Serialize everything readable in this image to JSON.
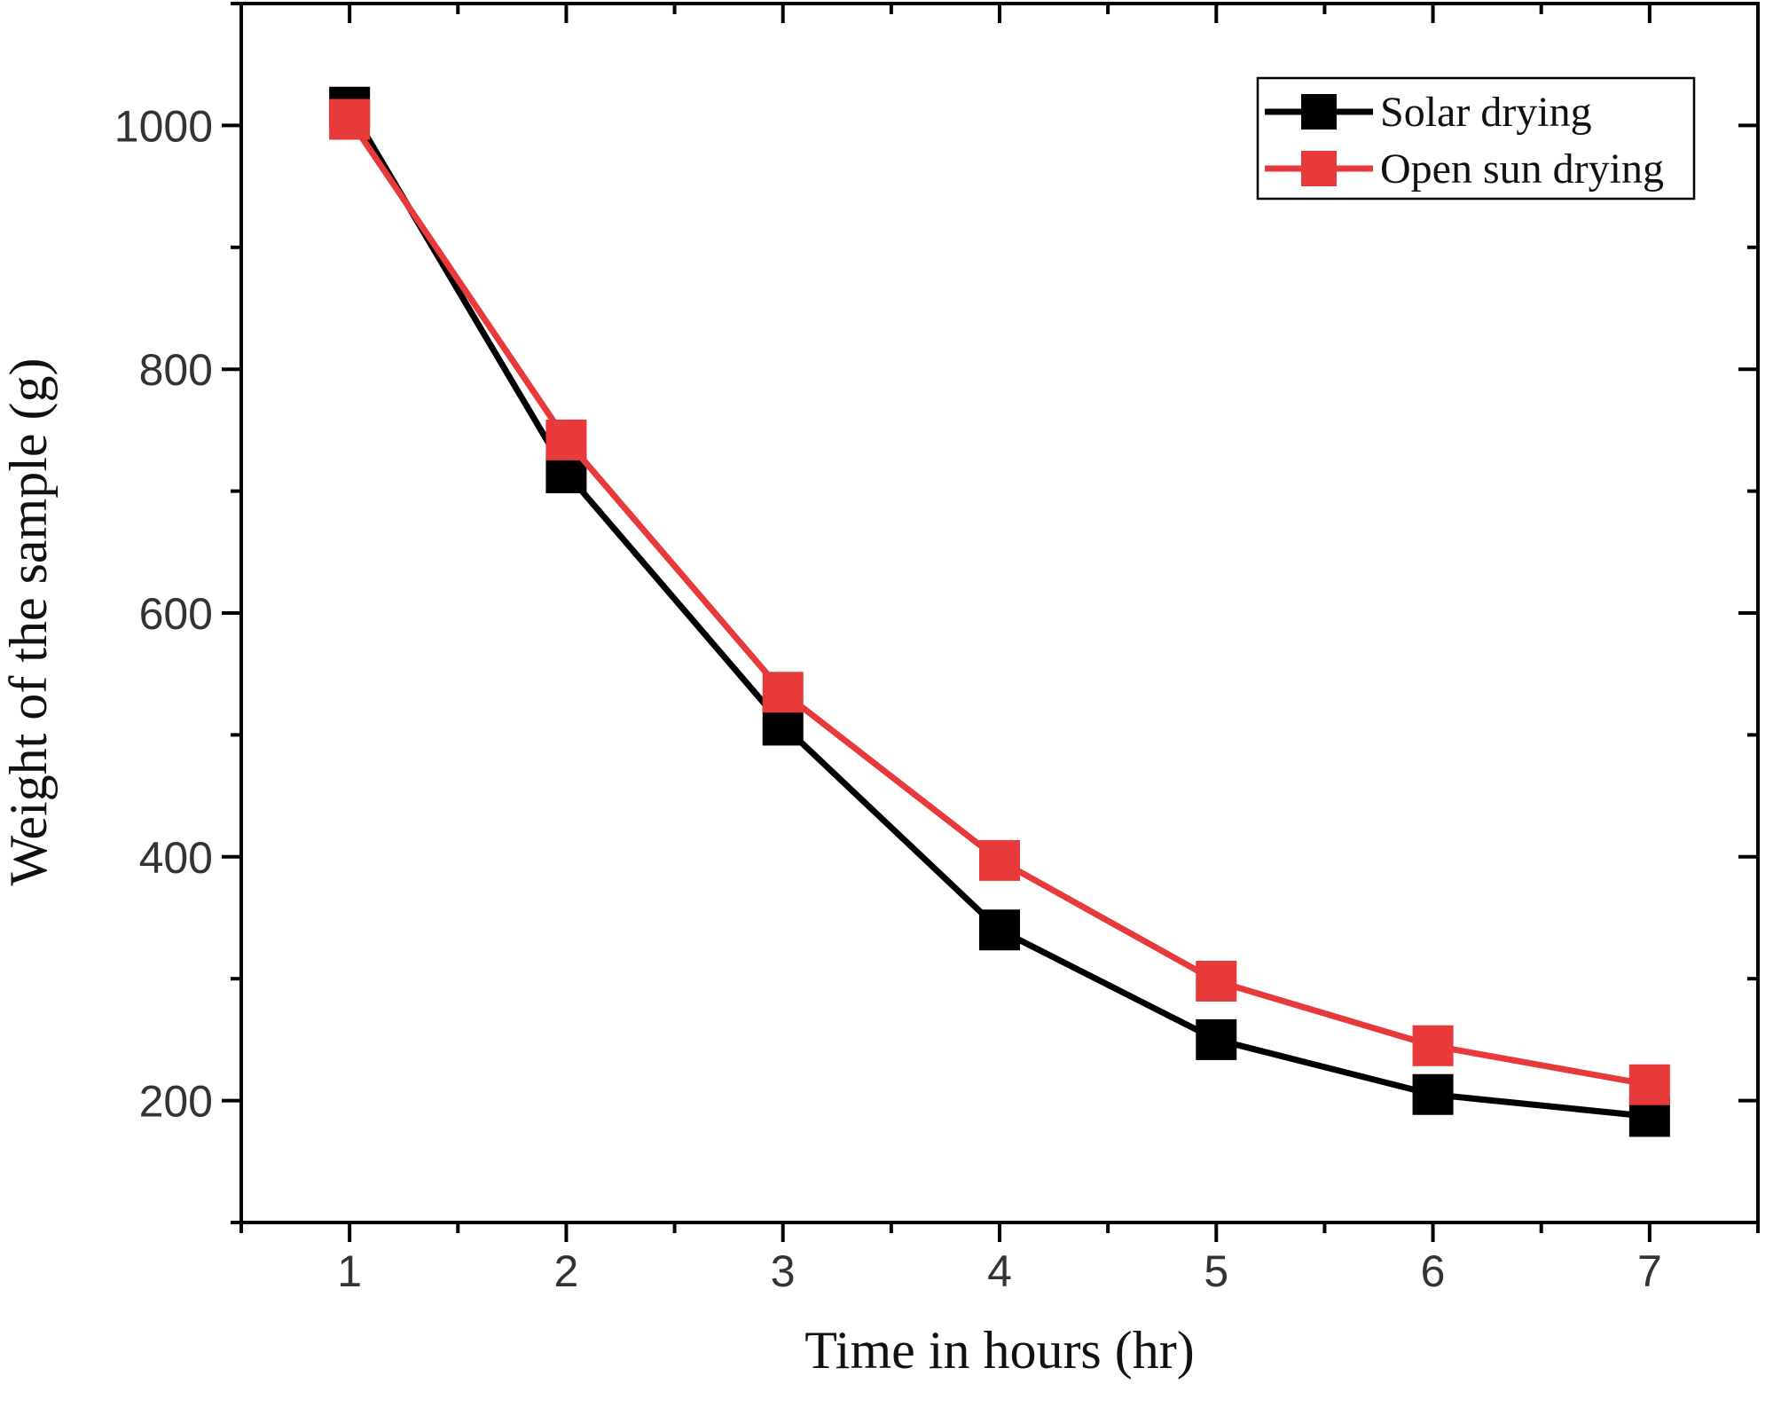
{
  "chart_data": {
    "type": "line",
    "title": "",
    "xlabel": "Time in hours (hr)",
    "ylabel": "Weight of the sample (g)",
    "x": [
      1,
      2,
      3,
      4,
      5,
      6,
      7
    ],
    "xlim": [
      0.5,
      7.5
    ],
    "ylim": [
      100,
      1100
    ],
    "xticks": [
      "1",
      "2",
      "3",
      "4",
      "5",
      "6",
      "7"
    ],
    "yticks": [
      "200",
      "400",
      "600",
      "800",
      "1000"
    ],
    "legend_position": "top-right",
    "grid": false,
    "series": [
      {
        "name": "Solar drying",
        "color": "#000000",
        "values": [
          1015,
          715,
          508,
          340,
          250,
          205,
          187
        ]
      },
      {
        "name": "Open sun drying",
        "color": "#e8393b",
        "values": [
          1005,
          742,
          535,
          397,
          298,
          245,
          213
        ]
      }
    ]
  }
}
